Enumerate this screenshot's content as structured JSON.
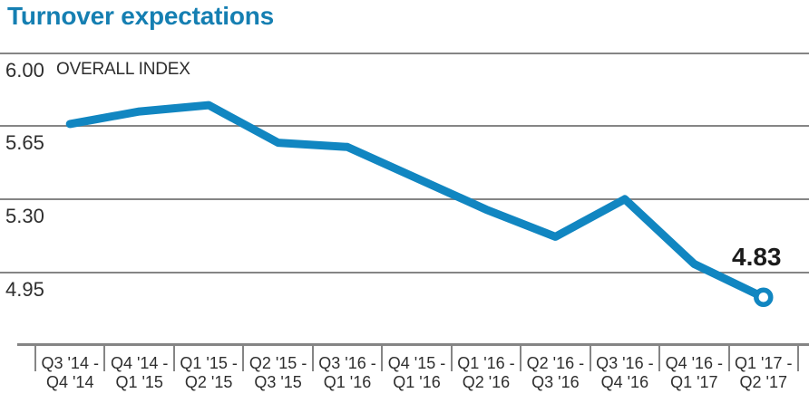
{
  "title": "Turnover expectations",
  "colors": {
    "title": "#157fb2",
    "line": "#1186c1",
    "grid": "#858585",
    "text": "#2e2e2e",
    "annotation": "#1b1b1b"
  },
  "chart_data": {
    "type": "line",
    "title": "Turnover expectations",
    "series_label": "OVERALL INDEX",
    "categories": [
      {
        "top": "Q3 '14 -",
        "bottom": "Q4 '14"
      },
      {
        "top": "Q4 '14 -",
        "bottom": "Q1 '15"
      },
      {
        "top": "Q1 '15 -",
        "bottom": "Q2 '15"
      },
      {
        "top": "Q2 '15 -",
        "bottom": "Q3 '15"
      },
      {
        "top": "Q3 '16 -",
        "bottom": "Q1 '16"
      },
      {
        "top": "Q4 '15 -",
        "bottom": "Q1 '16"
      },
      {
        "top": "Q1 '16 -",
        "bottom": "Q2 '16"
      },
      {
        "top": "Q2 '16 -",
        "bottom": "Q3 '16"
      },
      {
        "top": "Q3 '16 -",
        "bottom": "Q4 '16"
      },
      {
        "top": "Q4 '16 -",
        "bottom": "Q1 '17"
      },
      {
        "top": "Q1 '17 -",
        "bottom": "Q2 '17"
      }
    ],
    "values": [
      5.66,
      5.72,
      5.75,
      5.57,
      5.55,
      5.4,
      5.25,
      5.12,
      5.3,
      4.99,
      4.83
    ],
    "yticks": [
      6.0,
      5.65,
      5.3,
      4.95
    ],
    "ylim": [
      4.6,
      6.0
    ],
    "grid": true,
    "legend_position": "none",
    "last_point_label": "4.83",
    "marker": "open-circle-on-last-point"
  }
}
